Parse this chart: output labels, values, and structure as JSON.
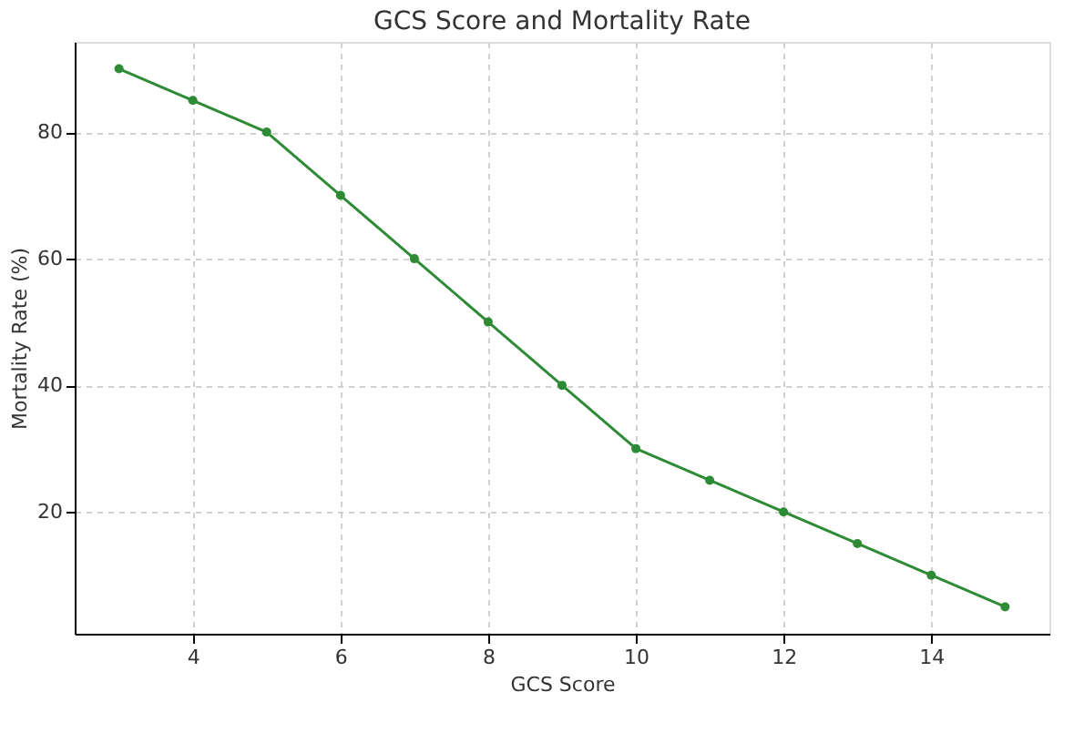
{
  "chart_data": {
    "type": "line",
    "title": "GCS Score and Mortality Rate",
    "xlabel": "GCS Score",
    "ylabel": "Mortality Rate (%)",
    "x": [
      3,
      4,
      5,
      6,
      7,
      8,
      9,
      10,
      11,
      12,
      13,
      14,
      15
    ],
    "series": [
      {
        "color": "#2e8b35",
        "values": [
          90,
          85,
          80,
          70,
          60,
          50,
          40,
          30,
          25,
          20,
          15,
          10,
          5
        ]
      }
    ],
    "xlim": [
      2.4,
      15.6
    ],
    "ylim": [
      0.75,
      94.25
    ],
    "xticks": [
      4,
      6,
      8,
      10,
      12,
      14
    ],
    "yticks": [
      20,
      40,
      60,
      80
    ],
    "grid": true,
    "marker": "circle",
    "line_style": "solid"
  }
}
